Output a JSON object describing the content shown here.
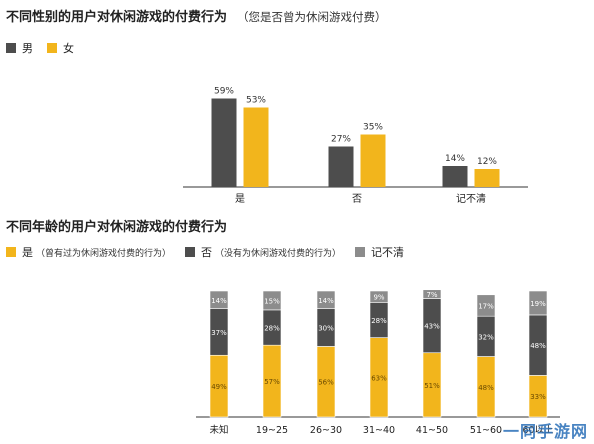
{
  "chart1": {
    "title": "不同性别的用户对休闲游戏的付费行为",
    "subtitle": "（您是否曾为休闲游戏付费）",
    "legend": [
      "男",
      "女"
    ]
  },
  "chart2": {
    "title": "不同年龄的用户对休闲游戏的付费行为",
    "legend": [
      {
        "label": "是",
        "note": "（曾有过为休闲游戏付费的行为）"
      },
      {
        "label": "否",
        "note": "（没有为休闲游戏付费的行为）"
      },
      {
        "label": "记不清",
        "note": ""
      }
    ]
  },
  "colors": {
    "male": "#4d4d4d",
    "female": "#f2b51c",
    "unsure": "#8c8c8c",
    "axis": "#333333"
  },
  "watermark": "一同手游网",
  "chart_data": [
    {
      "type": "bar",
      "title": "不同性别的用户对休闲游戏的付费行为",
      "subtitle": "（您是否曾为休闲游戏付费）",
      "categories": [
        "是",
        "否",
        "记不清"
      ],
      "series": [
        {
          "name": "男",
          "values": [
            59,
            27,
            14
          ],
          "labels": [
            "59%",
            "27%",
            "14%"
          ]
        },
        {
          "name": "女",
          "values": [
            53,
            35,
            12
          ],
          "labels": [
            "53%",
            "35%",
            "12%"
          ]
        }
      ],
      "ylim": [
        0,
        100
      ],
      "legend_position": "top-left",
      "grid": false
    },
    {
      "type": "bar",
      "stacked": true,
      "title": "不同年龄的用户对休闲游戏的付费行为",
      "categories": [
        "未知",
        "19~25",
        "26~30",
        "31~40",
        "41~50",
        "51~60",
        "60以上"
      ],
      "series": [
        {
          "name": "是",
          "values": [
            49,
            57,
            56,
            63,
            51,
            48,
            33
          ],
          "labels": [
            "49%",
            "57%",
            "56%",
            "63%",
            "51%",
            "48%",
            "33%"
          ]
        },
        {
          "name": "否",
          "values": [
            37,
            28,
            30,
            28,
            43,
            32,
            48
          ],
          "labels": [
            "37%",
            "28%",
            "30%",
            "28%",
            "43%",
            "32%",
            "48%"
          ]
        },
        {
          "name": "记不清",
          "values": [
            14,
            15,
            14,
            9,
            7,
            17,
            19
          ],
          "labels": [
            "14%",
            "15%",
            "14%",
            "9%",
            "7%",
            "17%",
            "19%"
          ]
        }
      ],
      "ylim": [
        0,
        100
      ],
      "legend_position": "top-left",
      "grid": false
    }
  ]
}
